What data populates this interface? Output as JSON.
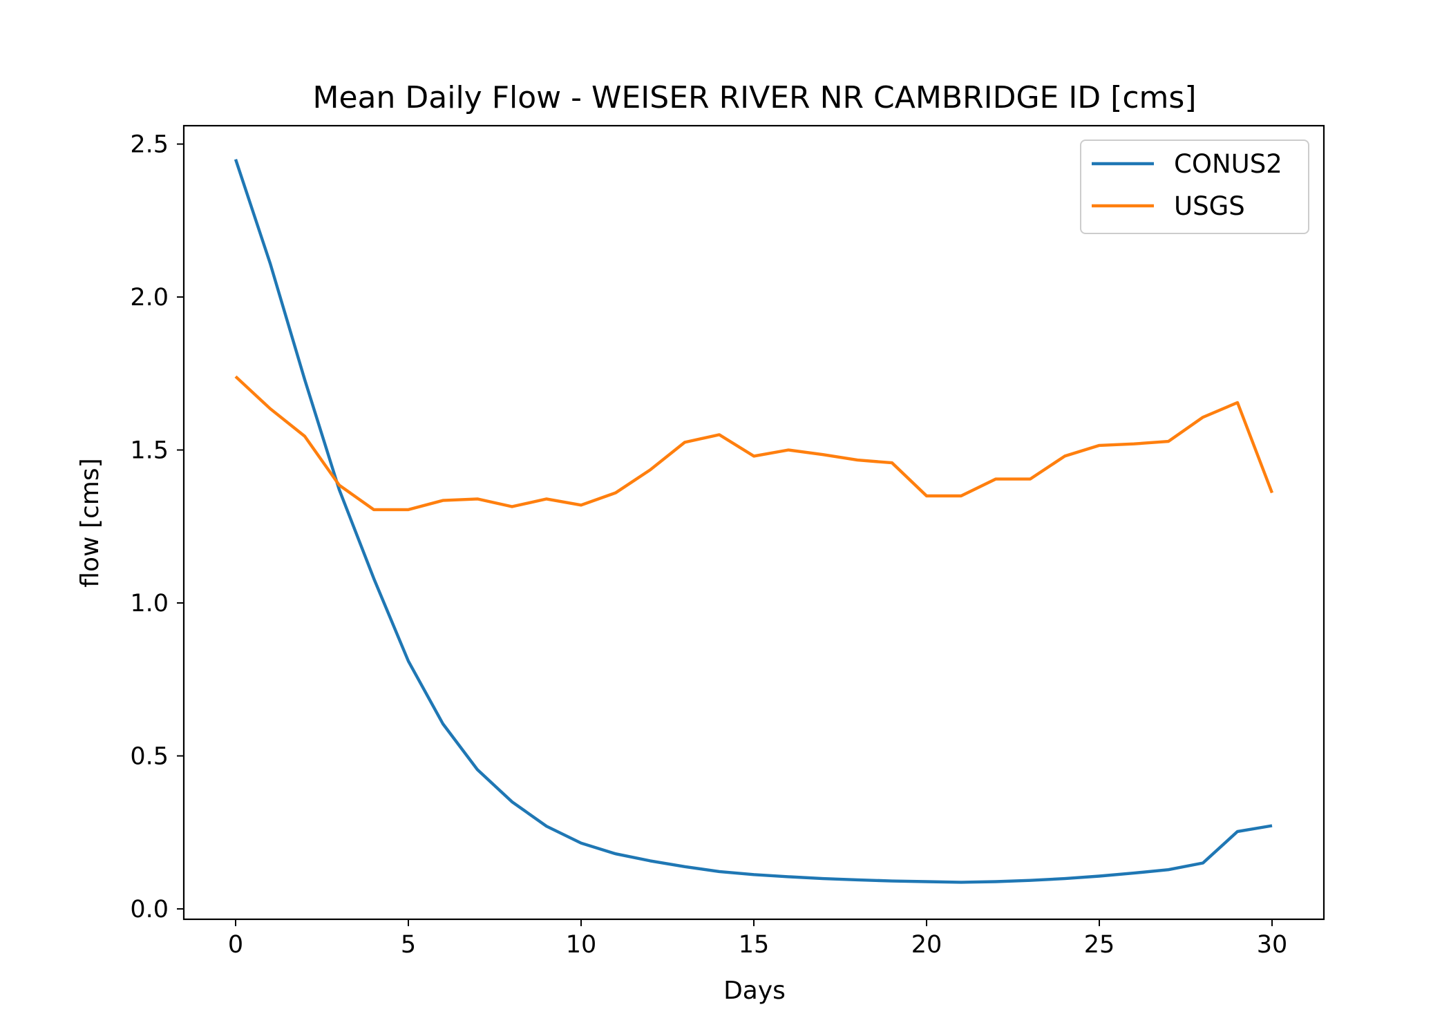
{
  "chart_data": {
    "type": "line",
    "title": "Mean Daily Flow - WEISER RIVER NR CAMBRIDGE ID [cms]",
    "xlabel": "Days",
    "ylabel": "flow [cms]",
    "xlim": [
      -1.5,
      31.5
    ],
    "ylim": [
      -0.034,
      2.56
    ],
    "xticks": [
      0,
      5,
      10,
      15,
      20,
      25,
      30
    ],
    "yticks": [
      0.0,
      0.5,
      1.0,
      1.5,
      2.0,
      2.5
    ],
    "xtick_labels": [
      "0",
      "5",
      "10",
      "15",
      "20",
      "25",
      "30"
    ],
    "ytick_labels": [
      "0.0",
      "0.5",
      "1.0",
      "1.5",
      "2.0",
      "2.5"
    ],
    "grid": false,
    "legend_position": "top-right",
    "x": [
      0,
      1,
      2,
      3,
      4,
      5,
      6,
      7,
      8,
      9,
      10,
      11,
      12,
      13,
      14,
      15,
      16,
      17,
      18,
      19,
      20,
      21,
      22,
      23,
      24,
      25,
      26,
      27,
      28,
      29,
      30
    ],
    "series": [
      {
        "name": "CONUS2",
        "color": "#1f77b4",
        "values": [
          2.45,
          2.11,
          1.73,
          1.37,
          1.08,
          0.81,
          0.605,
          0.455,
          0.35,
          0.27,
          0.215,
          0.18,
          0.157,
          0.138,
          0.122,
          0.112,
          0.105,
          0.099,
          0.095,
          0.091,
          0.089,
          0.087,
          0.089,
          0.093,
          0.099,
          0.107,
          0.117,
          0.128,
          0.15,
          0.253,
          0.272
        ]
      },
      {
        "name": "USGS",
        "color": "#ff7f0e",
        "values": [
          1.74,
          1.635,
          1.545,
          1.385,
          1.305,
          1.305,
          1.335,
          1.34,
          1.315,
          1.34,
          1.32,
          1.36,
          1.435,
          1.525,
          1.55,
          1.48,
          1.5,
          1.485,
          1.467,
          1.458,
          1.35,
          1.35,
          1.405,
          1.405,
          1.48,
          1.515,
          1.52,
          1.528,
          1.607,
          1.655,
          1.36
        ]
      }
    ]
  }
}
